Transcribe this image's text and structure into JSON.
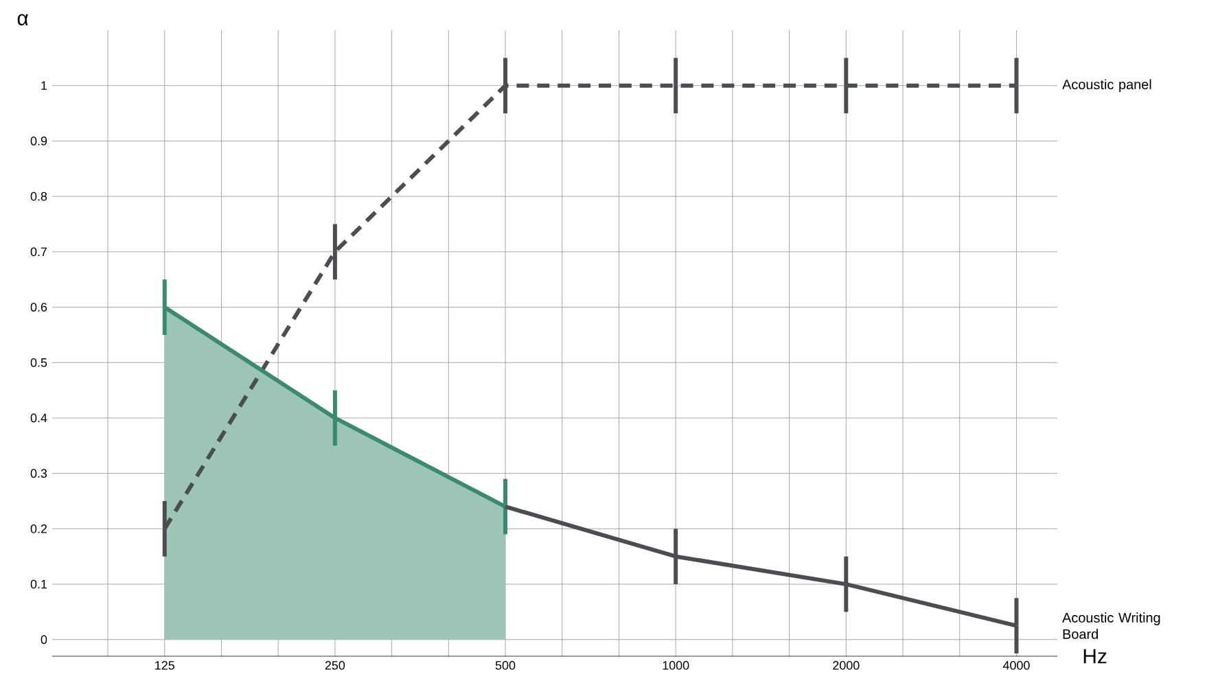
{
  "chart_data": {
    "type": "line",
    "xlabel": "Hz",
    "ylabel": "α",
    "categories": [
      "125",
      "250",
      "500",
      "1000",
      "2000",
      "4000"
    ],
    "series": [
      {
        "name": "Acoustic panel",
        "color": "#4a4d52",
        "line_style": "dashed",
        "values": [
          0.2,
          0.7,
          1,
          1,
          1,
          1
        ],
        "errors": [
          0.05,
          0.05,
          0.05,
          0.05,
          0.05,
          0.05
        ]
      },
      {
        "type": "area",
        "color": "#3a8a6b",
        "values": [
          0.6,
          0.4,
          0.24,
          null,
          null,
          null
        ],
        "errors": [
          0.05,
          0.05,
          0.05,
          null,
          null,
          null
        ]
      },
      {
        "name": "Acoustic Writing Board",
        "color": "#4a4d52",
        "values": [
          null,
          null,
          0.24,
          0.15,
          0.1,
          0.025
        ],
        "errors": [
          null,
          null,
          null,
          0.05,
          0.05,
          0.05
        ]
      }
    ],
    "ylim": [
      -0.03,
      1.1
    ],
    "yticks": [
      0,
      0.1,
      0.2,
      0.3,
      0.4,
      0.5,
      0.6,
      0.7,
      0.8,
      0.9,
      1
    ],
    "grid": true,
    "line_style": "solid"
  }
}
